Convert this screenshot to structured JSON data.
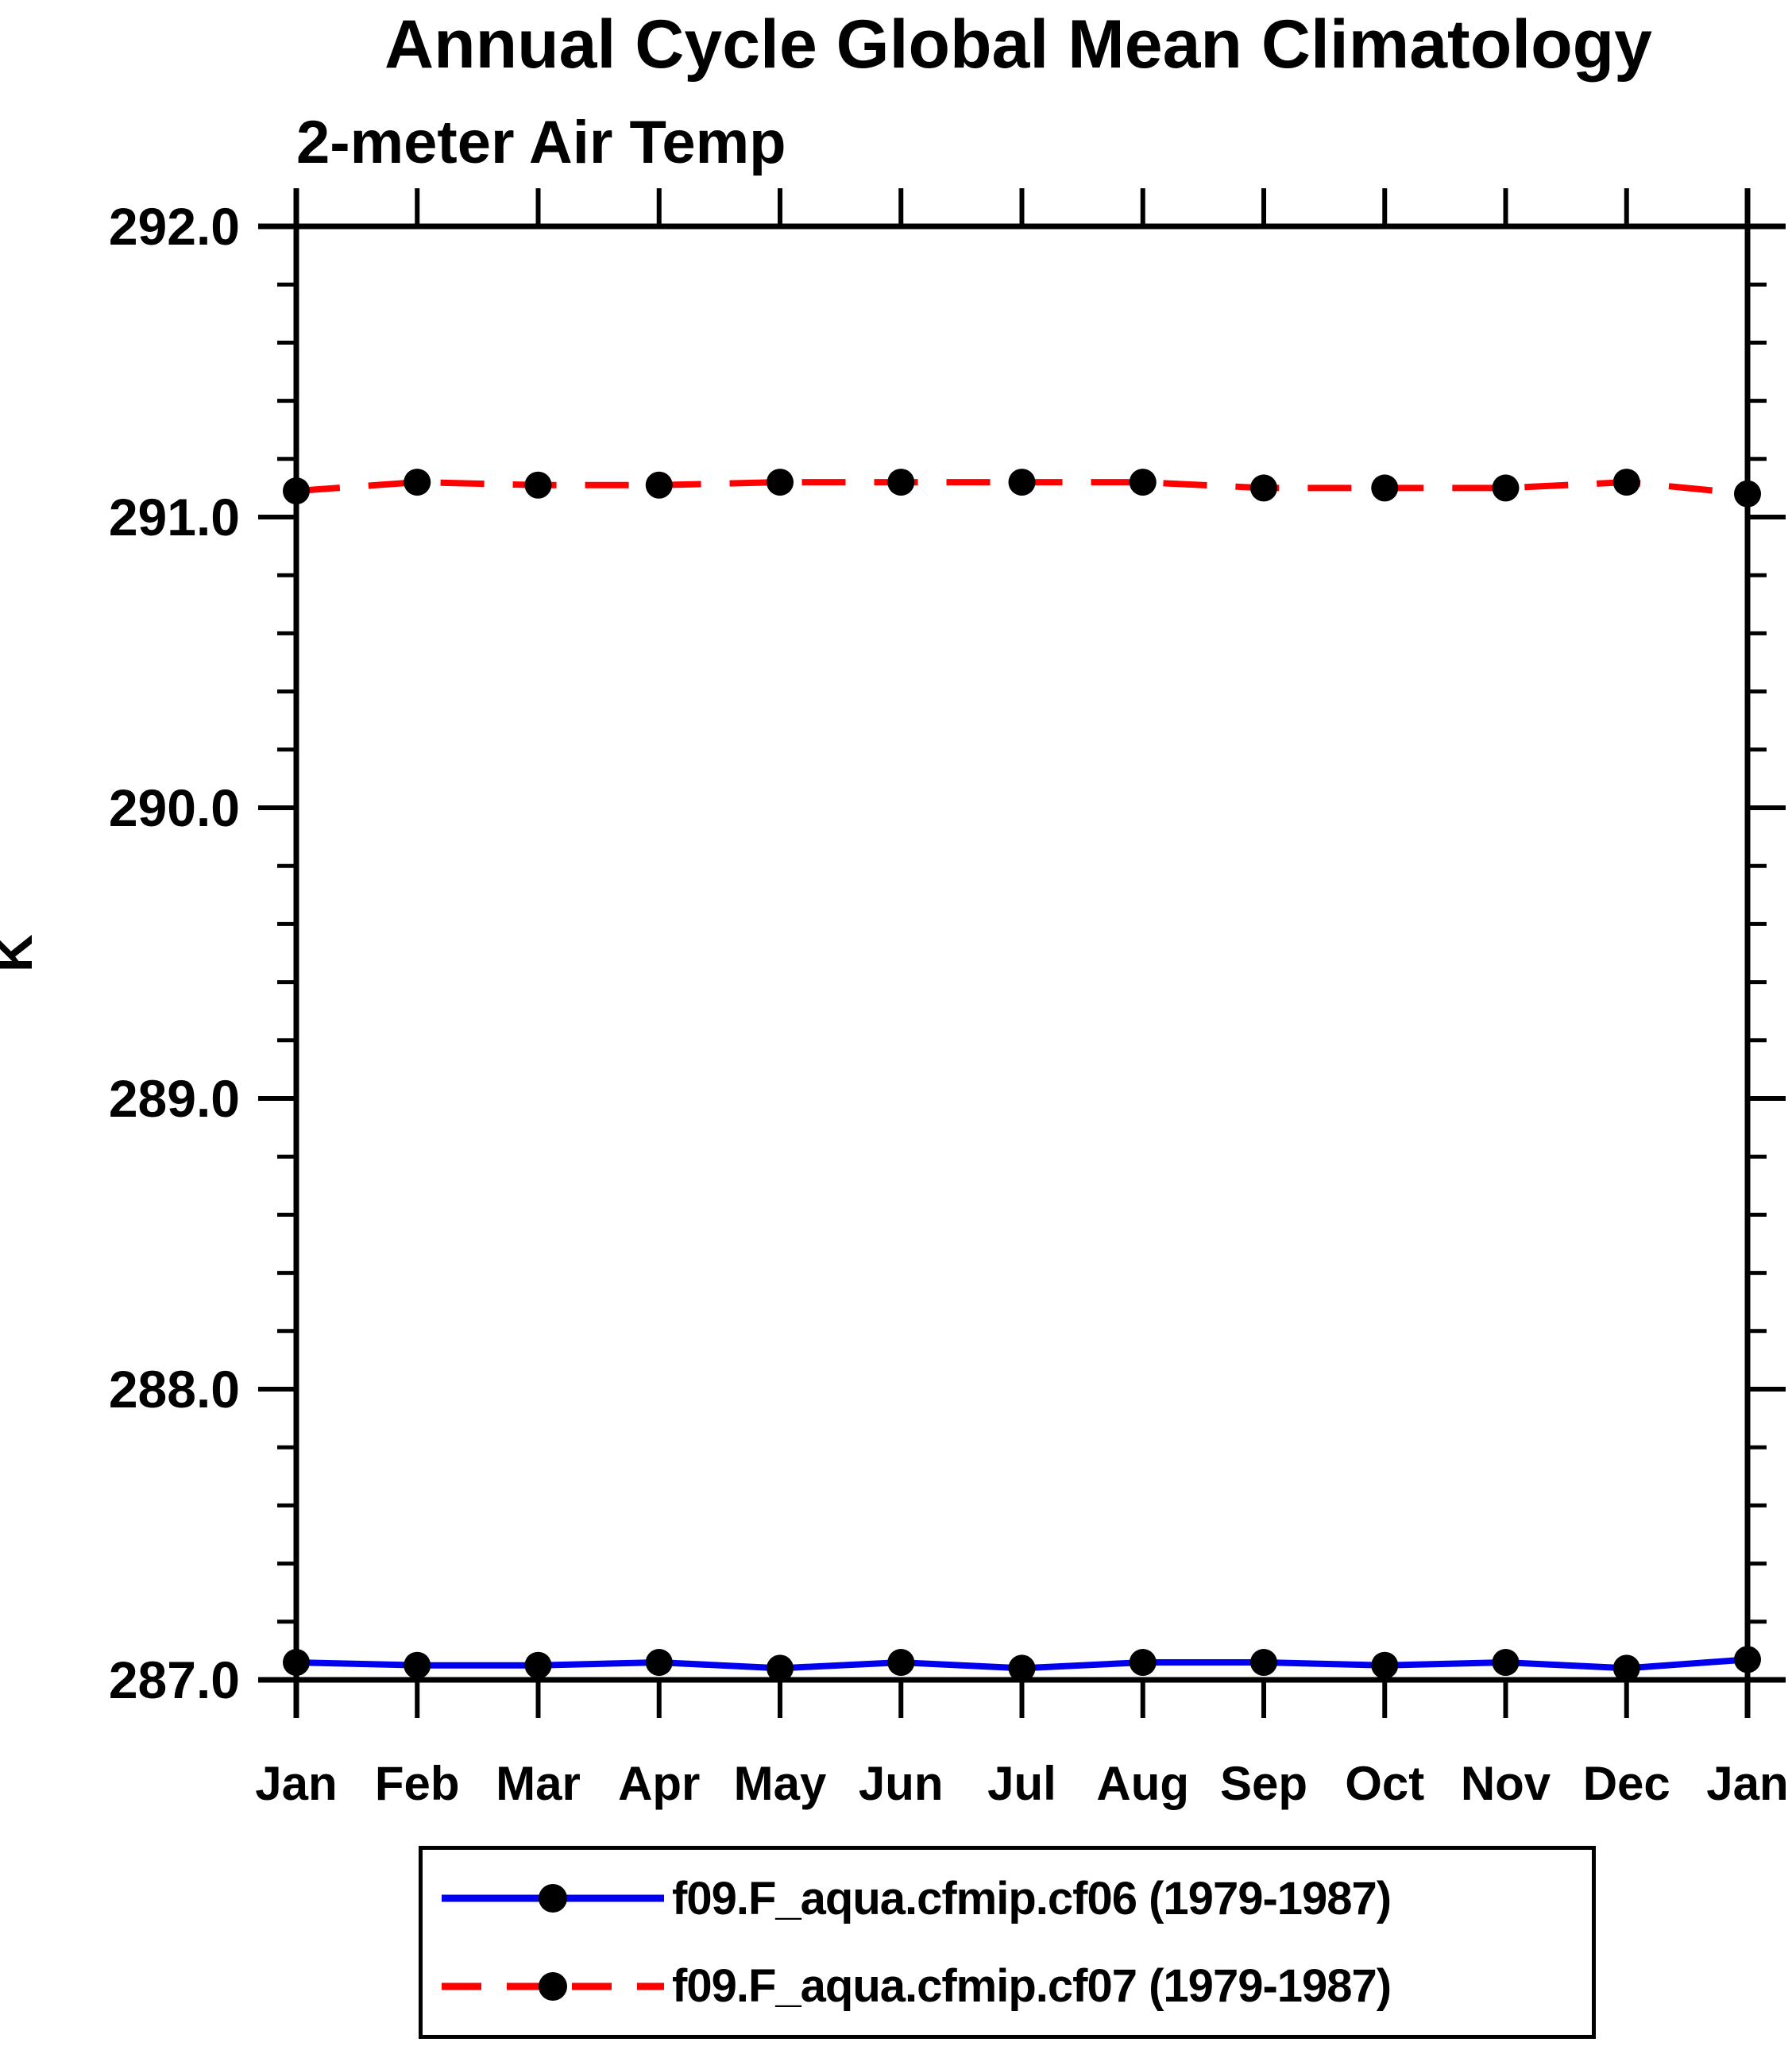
{
  "title": "Annual Cycle Global Mean Climatology",
  "subtitle": "2-meter Air Temp",
  "y_axis_label": "K",
  "legend": {
    "items": [
      {
        "label": "f09.F_aqua.cfmip.cf06 (1979-1987)",
        "color": "#0000ee",
        "line_style": "solid"
      },
      {
        "label": "f09.F_aqua.cfmip.cf07 (1979-1987)",
        "color": "#ff0000",
        "line_style": "dashed"
      }
    ]
  },
  "chart_data": {
    "type": "line",
    "title": "Annual Cycle Global Mean Climatology",
    "subtitle": "2-meter Air Temp",
    "xlabel": "",
    "ylabel": "K",
    "ylim": [
      287.0,
      292.0
    ],
    "y_major_ticks": [
      287.0,
      288.0,
      289.0,
      290.0,
      291.0,
      292.0
    ],
    "y_tick_labels": [
      "287.0",
      "288.0",
      "289.0",
      "290.0",
      "291.0",
      "292.0"
    ],
    "y_minor_tick_step": 0.2,
    "grid": false,
    "legend_position": "bottom",
    "categories": [
      "Jan",
      "Feb",
      "Mar",
      "Apr",
      "May",
      "Jun",
      "Jul",
      "Aug",
      "Sep",
      "Oct",
      "Nov",
      "Dec",
      "Jan"
    ],
    "series": [
      {
        "name": "f09.F_aqua.cfmip.cf06 (1979-1987)",
        "color": "#0000ee",
        "style": "solid",
        "marker": "filled-circle",
        "marker_color": "#000000",
        "values": [
          287.06,
          287.05,
          287.05,
          287.06,
          287.04,
          287.06,
          287.04,
          287.06,
          287.06,
          287.05,
          287.06,
          287.04,
          287.07
        ]
      },
      {
        "name": "f09.F_aqua.cfmip.cf07 (1979-1987)",
        "color": "#ff0000",
        "style": "dashed",
        "marker": "filled-circle",
        "marker_color": "#000000",
        "values": [
          291.09,
          291.12,
          291.11,
          291.11,
          291.12,
          291.12,
          291.12,
          291.12,
          291.1,
          291.1,
          291.1,
          291.12,
          291.08
        ]
      }
    ]
  }
}
